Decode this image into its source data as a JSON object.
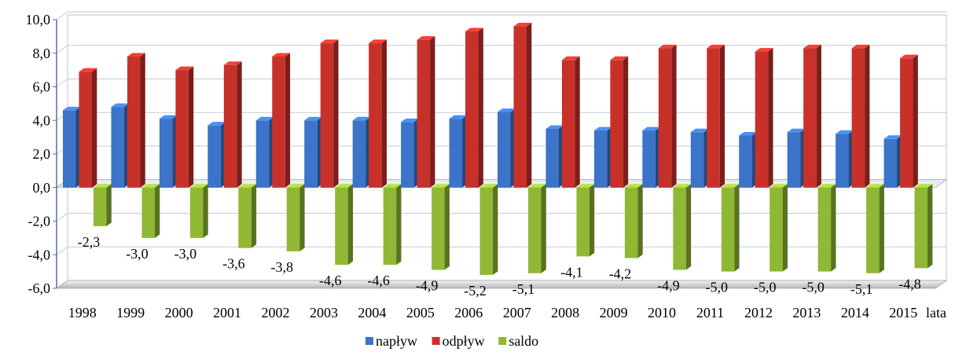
{
  "chart_data": {
    "type": "bar",
    "categories": [
      "1998",
      "1999",
      "2000",
      "2001",
      "2002",
      "2003",
      "2004",
      "2005",
      "2006",
      "2007",
      "2008",
      "2009",
      "2010",
      "2011",
      "2012",
      "2013",
      "2014",
      "2015"
    ],
    "series": [
      {
        "name": "napływ",
        "color": "#3b74c8",
        "values": [
          4.6,
          4.8,
          4.1,
          3.7,
          4.0,
          4.0,
          4.0,
          3.9,
          4.1,
          4.5,
          3.5,
          3.4,
          3.4,
          3.3,
          3.1,
          3.3,
          3.2,
          2.9
        ]
      },
      {
        "name": "odpływ",
        "color": "#c8312a",
        "values": [
          6.9,
          7.8,
          7.0,
          7.3,
          7.8,
          8.6,
          8.6,
          8.8,
          9.3,
          9.6,
          7.6,
          7.6,
          8.3,
          8.3,
          8.1,
          8.3,
          8.3,
          7.7
        ]
      },
      {
        "name": "saldo",
        "color": "#90b834",
        "values": [
          -2.3,
          -3.0,
          -3.0,
          -3.6,
          -3.8,
          -4.6,
          -4.6,
          -4.9,
          -5.2,
          -5.1,
          -4.1,
          -4.2,
          -4.9,
          -5.0,
          -5.0,
          -5.0,
          -5.1,
          -4.8
        ]
      }
    ],
    "data_labels": [
      "-2,3",
      "-3,0",
      "-3,0",
      "-3,6",
      "-3,8",
      "-4,6",
      "-4,6",
      "-4,9",
      "-5,2",
      "-5,1",
      "-4,1",
      "-4,2",
      "-4,9",
      "-5,0",
      "-5,0",
      "-5,0",
      "-5,1",
      "-4,8"
    ],
    "y_ticks": [
      "10,0",
      "8,0",
      "6,0",
      "4,0",
      "2,0",
      "0,0",
      "-2,0",
      "-4,0",
      "-6,0"
    ],
    "xlabel": "lata",
    "ylim": [
      -6,
      10
    ],
    "grid": true,
    "legend_position": "bottom"
  }
}
